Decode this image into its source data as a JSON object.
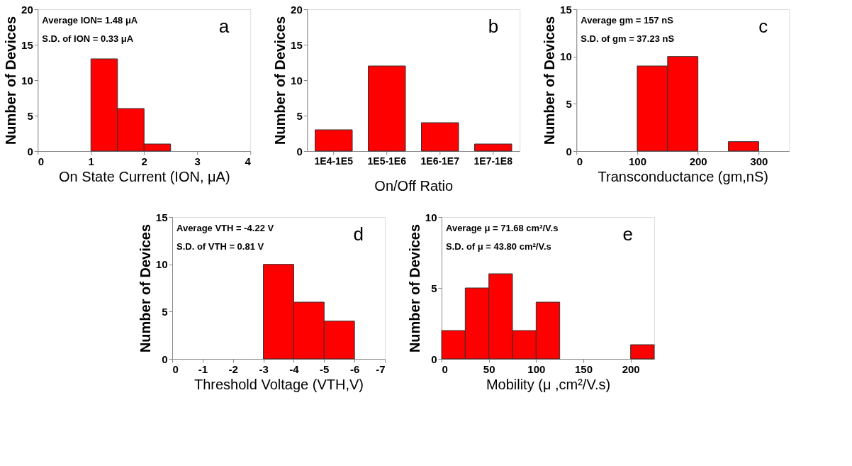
{
  "chart_data": [
    {
      "type": "histogram",
      "xlabel": "On State Current (ION, μA)",
      "ylabel": "Number of Devices",
      "bins": [
        1,
        1.5,
        2,
        2.5
      ],
      "values": [
        13,
        6,
        1
      ],
      "color": "#ff0000",
      "xlim": [
        0,
        4
      ],
      "xticks": [
        0,
        1,
        2,
        3,
        4
      ],
      "ylim": [
        0,
        20
      ],
      "yticks": [
        0,
        5,
        10,
        15,
        20
      ],
      "grid": false,
      "annotations": [
        "Average ION= 1.48 μA",
        "S.D. of ION = 0.33 μA",
        "a"
      ]
    },
    {
      "type": "bar",
      "xlabel": "On/Off Ratio",
      "ylabel": "Number of Devices",
      "categories": [
        "1E4-1E5",
        "1E5-1E6",
        "1E6-1E7",
        "1E7-1E8"
      ],
      "values": [
        3,
        12,
        4,
        1
      ],
      "color": "#ff0000",
      "ylim": [
        0,
        20
      ],
      "yticks": [
        0,
        5,
        10,
        15,
        20
      ],
      "grid": false,
      "annotations": [
        "b"
      ]
    },
    {
      "type": "histogram",
      "xlabel": "Transconductance (gm,nS)",
      "ylabel": "Number of Devices",
      "bins": [
        100,
        150,
        200,
        250,
        300
      ],
      "values": [
        9,
        10,
        0,
        1
      ],
      "color": "#ff0000",
      "xlim": [
        0,
        350
      ],
      "xticks": [
        0,
        100,
        200,
        300
      ],
      "ylim": [
        0,
        15
      ],
      "yticks": [
        0,
        5,
        10,
        15
      ],
      "grid": false,
      "annotations": [
        "Average gm = 157 nS",
        "S.D. of  gm = 37.23 nS",
        "c"
      ]
    },
    {
      "type": "histogram",
      "xlabel": "Threshold Voltage (VTH,V)",
      "ylabel": "Number of Devices",
      "bins": [
        -3,
        -4,
        -5,
        -6
      ],
      "values": [
        10,
        6,
        4
      ],
      "color": "#ff0000",
      "xlim": [
        0,
        -7
      ],
      "xticks": [
        0,
        -1,
        -2,
        -3,
        -4,
        -5,
        -6,
        -7
      ],
      "ylim": [
        0,
        15
      ],
      "yticks": [
        0,
        5,
        10,
        15
      ],
      "grid": false,
      "annotations": [
        "Average VTH = -4.22 V",
        "S.D. of VTH = 0.81 V",
        "d"
      ]
    },
    {
      "type": "histogram",
      "xlabel": "Mobility (μ ,cm²/V.s)",
      "ylabel": "Number of Devices",
      "bins": [
        0,
        25,
        50,
        75,
        100,
        125,
        150,
        175,
        200,
        225
      ],
      "values": [
        2,
        5,
        6,
        2,
        4,
        0,
        0,
        0,
        1
      ],
      "color": "#ff0000",
      "xlim": [
        0,
        225
      ],
      "xticks": [
        0,
        50,
        100,
        150,
        200
      ],
      "ylim": [
        0,
        10
      ],
      "yticks": [
        0,
        5,
        10
      ],
      "grid": false,
      "annotations": [
        "Average μ = 71.68 cm²/V.s",
        "S.D. of  μ = 43.80 cm²/V.s",
        "e"
      ]
    }
  ]
}
